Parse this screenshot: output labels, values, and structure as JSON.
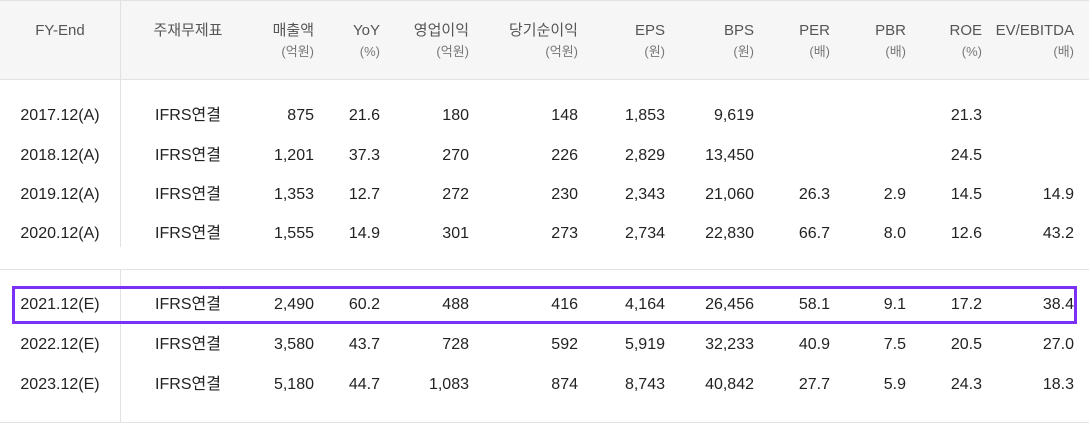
{
  "headers": [
    {
      "label": "FY-End",
      "unit": ""
    },
    {
      "label": "주재무제표",
      "unit": ""
    },
    {
      "label": "매출액",
      "unit": "(억원)"
    },
    {
      "label": "YoY",
      "unit": "(%)"
    },
    {
      "label": "영업이익",
      "unit": "(억원)"
    },
    {
      "label": "당기순이익",
      "unit": "(억원)"
    },
    {
      "label": "EPS",
      "unit": "(원)"
    },
    {
      "label": "BPS",
      "unit": "(원)"
    },
    {
      "label": "PER",
      "unit": "(배)"
    },
    {
      "label": "PBR",
      "unit": "(배)"
    },
    {
      "label": "ROE",
      "unit": "(%)"
    },
    {
      "label": "EV/EBITDA",
      "unit": "(배)"
    }
  ],
  "actual_rows": [
    {
      "period": "2017.12(A)",
      "type": "IFRS연결",
      "sales": "875",
      "yoy": "21.6",
      "op": "180",
      "net": "148",
      "eps": "1,853",
      "bps": "9,619",
      "per": "",
      "pbr": "",
      "roe": "21.3",
      "ev": ""
    },
    {
      "period": "2018.12(A)",
      "type": "IFRS연결",
      "sales": "1,201",
      "yoy": "37.3",
      "op": "270",
      "net": "226",
      "eps": "2,829",
      "bps": "13,450",
      "per": "",
      "pbr": "",
      "roe": "24.5",
      "ev": ""
    },
    {
      "period": "2019.12(A)",
      "type": "IFRS연결",
      "sales": "1,353",
      "yoy": "12.7",
      "op": "272",
      "net": "230",
      "eps": "2,343",
      "bps": "21,060",
      "per": "26.3",
      "pbr": "2.9",
      "roe": "14.5",
      "ev": "14.9"
    },
    {
      "period": "2020.12(A)",
      "type": "IFRS연결",
      "sales": "1,555",
      "yoy": "14.9",
      "op": "301",
      "net": "273",
      "eps": "2,734",
      "bps": "22,830",
      "per": "66.7",
      "pbr": "8.0",
      "roe": "12.6",
      "ev": "43.2"
    }
  ],
  "estimate_rows": [
    {
      "period": "2021.12(E)",
      "type": "IFRS연결",
      "sales": "2,490",
      "yoy": "60.2",
      "op": "488",
      "net": "416",
      "eps": "4,164",
      "bps": "26,456",
      "per": "58.1",
      "pbr": "9.1",
      "roe": "17.2",
      "ev": "38.4"
    },
    {
      "period": "2022.12(E)",
      "type": "IFRS연결",
      "sales": "3,580",
      "yoy": "43.7",
      "op": "728",
      "net": "592",
      "eps": "5,919",
      "bps": "32,233",
      "per": "40.9",
      "pbr": "7.5",
      "roe": "20.5",
      "ev": "27.0"
    },
    {
      "period": "2023.12(E)",
      "type": "IFRS연결",
      "sales": "5,180",
      "yoy": "44.7",
      "op": "1,083",
      "net": "874",
      "eps": "8,743",
      "bps": "40,842",
      "per": "27.7",
      "pbr": "5.9",
      "roe": "24.3",
      "ev": "18.3"
    }
  ],
  "highlight_color": "#7b2ff7"
}
